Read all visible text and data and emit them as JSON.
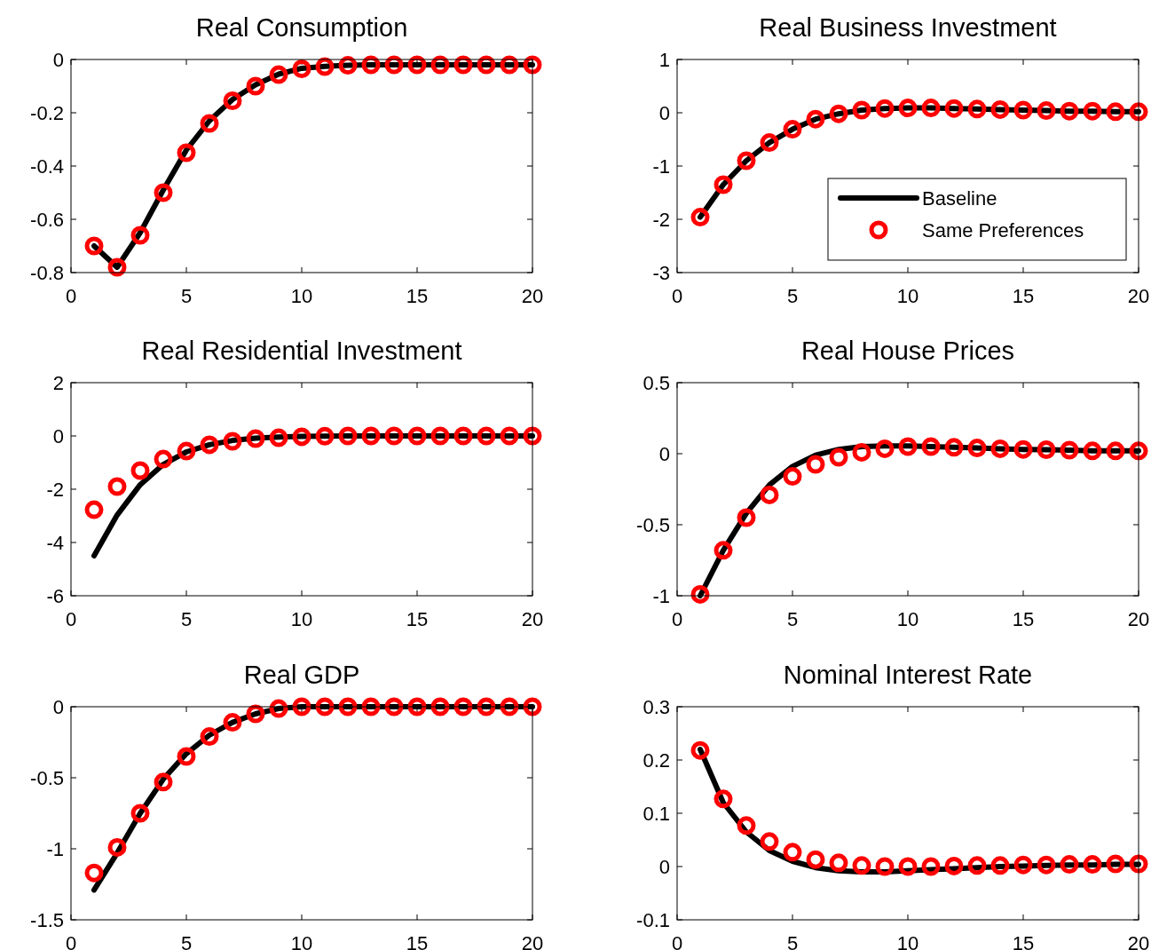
{
  "chart_data": [
    {
      "type": "line",
      "title": "Real Consumption",
      "x": [
        1,
        2,
        3,
        4,
        5,
        6,
        7,
        8,
        9,
        10,
        11,
        12,
        13,
        14,
        15,
        16,
        17,
        18,
        19,
        20
      ],
      "xlim": [
        0,
        20
      ],
      "xticks": [
        0,
        5,
        10,
        15,
        20
      ],
      "ylim": [
        -0.8,
        0
      ],
      "yticks": [
        -0.8,
        -0.6,
        -0.4,
        -0.2,
        0
      ],
      "legend": false,
      "series": [
        {
          "type": "line",
          "color": "#000000",
          "marker": "none",
          "line_style": "solid",
          "values": [
            -0.7,
            -0.78,
            -0.65,
            -0.49,
            -0.34,
            -0.23,
            -0.15,
            -0.095,
            -0.055,
            -0.033,
            -0.026,
            -0.022,
            -0.02,
            -0.02,
            -0.02,
            -0.02,
            -0.02,
            -0.02,
            -0.02,
            -0.02
          ]
        },
        {
          "type": "scatter",
          "color": "#ff0000",
          "marker": "circle",
          "values": [
            -0.7,
            -0.78,
            -0.66,
            -0.5,
            -0.35,
            -0.24,
            -0.155,
            -0.1,
            -0.057,
            -0.035,
            -0.027,
            -0.022,
            -0.02,
            -0.02,
            -0.02,
            -0.02,
            -0.02,
            -0.02,
            -0.02,
            -0.02
          ]
        }
      ]
    },
    {
      "type": "line",
      "title": "Real Business Investment",
      "x": [
        1,
        2,
        3,
        4,
        5,
        6,
        7,
        8,
        9,
        10,
        11,
        12,
        13,
        14,
        15,
        16,
        17,
        18,
        19,
        20
      ],
      "xlim": [
        0,
        20
      ],
      "xticks": [
        0,
        5,
        10,
        15,
        20
      ],
      "ylim": [
        -3,
        1
      ],
      "yticks": [
        -3,
        -2,
        -1,
        0,
        1
      ],
      "legend": "bottom right",
      "series": [
        {
          "type": "line",
          "name": "Baseline",
          "color": "#000000",
          "marker": "none",
          "line_style": "solid",
          "values": [
            -1.96,
            -1.35,
            -0.9,
            -0.56,
            -0.31,
            -0.12,
            -0.02,
            0.05,
            0.08,
            0.09,
            0.09,
            0.08,
            0.07,
            0.06,
            0.05,
            0.04,
            0.03,
            0.03,
            0.02,
            0.02
          ]
        },
        {
          "type": "scatter",
          "name": "Same Preferences",
          "color": "#ff0000",
          "marker": "circle",
          "values": [
            -1.96,
            -1.35,
            -0.9,
            -0.56,
            -0.31,
            -0.12,
            -0.02,
            0.05,
            0.08,
            0.09,
            0.09,
            0.08,
            0.07,
            0.06,
            0.05,
            0.04,
            0.03,
            0.03,
            0.02,
            0.02
          ]
        }
      ]
    },
    {
      "type": "line",
      "title": "Real Residential Investment",
      "x": [
        1,
        2,
        3,
        4,
        5,
        6,
        7,
        8,
        9,
        10,
        11,
        12,
        13,
        14,
        15,
        16,
        17,
        18,
        19,
        20
      ],
      "xlim": [
        0,
        20
      ],
      "xticks": [
        0,
        5,
        10,
        15,
        20
      ],
      "ylim": [
        -6,
        2
      ],
      "yticks": [
        -6,
        -4,
        -2,
        0,
        2
      ],
      "legend": false,
      "series": [
        {
          "type": "line",
          "color": "#000000",
          "marker": "none",
          "line_style": "solid",
          "values": [
            -4.5,
            -2.97,
            -1.83,
            -1.07,
            -0.6,
            -0.33,
            -0.17,
            -0.08,
            -0.04,
            -0.02,
            -0.01,
            0,
            0,
            0,
            0,
            0,
            0,
            0,
            0,
            0
          ]
        },
        {
          "type": "scatter",
          "color": "#ff0000",
          "marker": "circle",
          "values": [
            -2.77,
            -1.9,
            -1.3,
            -0.87,
            -0.57,
            -0.33,
            -0.2,
            -0.1,
            -0.07,
            -0.03,
            -0.01,
            0,
            0,
            0,
            0,
            0,
            0,
            0,
            0,
            0
          ]
        }
      ]
    },
    {
      "type": "line",
      "title": "Real House Prices",
      "x": [
        1,
        2,
        3,
        4,
        5,
        6,
        7,
        8,
        9,
        10,
        11,
        12,
        13,
        14,
        15,
        16,
        17,
        18,
        19,
        20
      ],
      "xlim": [
        0,
        20
      ],
      "xticks": [
        0,
        5,
        10,
        15,
        20
      ],
      "ylim": [
        -1,
        0.5
      ],
      "yticks": [
        -1,
        -0.5,
        0,
        0.5
      ],
      "legend": false,
      "series": [
        {
          "type": "line",
          "color": "#000000",
          "marker": "none",
          "line_style": "solid",
          "values": [
            -1.0,
            -0.68,
            -0.42,
            -0.22,
            -0.09,
            -0.01,
            0.03,
            0.05,
            0.055,
            0.055,
            0.05,
            0.045,
            0.04,
            0.035,
            0.03,
            0.028,
            0.025,
            0.02,
            0.02,
            0.02
          ]
        },
        {
          "type": "scatter",
          "color": "#ff0000",
          "marker": "circle",
          "values": [
            -0.99,
            -0.68,
            -0.45,
            -0.29,
            -0.16,
            -0.075,
            -0.025,
            0.01,
            0.035,
            0.05,
            0.05,
            0.045,
            0.04,
            0.035,
            0.03,
            0.028,
            0.025,
            0.02,
            0.02,
            0.02
          ]
        }
      ]
    },
    {
      "type": "line",
      "title": "Real GDP",
      "x": [
        1,
        2,
        3,
        4,
        5,
        6,
        7,
        8,
        9,
        10,
        11,
        12,
        13,
        14,
        15,
        16,
        17,
        18,
        19,
        20
      ],
      "xlim": [
        0,
        20
      ],
      "xticks": [
        0,
        5,
        10,
        15,
        20
      ],
      "ylim": [
        -1.5,
        0
      ],
      "yticks": [
        -1.5,
        -1,
        -0.5,
        0
      ],
      "legend": false,
      "series": [
        {
          "type": "line",
          "color": "#000000",
          "marker": "none",
          "line_style": "solid",
          "values": [
            -1.29,
            -1.03,
            -0.75,
            -0.51,
            -0.33,
            -0.2,
            -0.11,
            -0.05,
            -0.013,
            0,
            0,
            0,
            0,
            0,
            0,
            0,
            0,
            0,
            0,
            0
          ]
        },
        {
          "type": "scatter",
          "color": "#ff0000",
          "marker": "circle",
          "values": [
            -1.17,
            -0.99,
            -0.75,
            -0.53,
            -0.35,
            -0.21,
            -0.11,
            -0.05,
            -0.013,
            0,
            0,
            0,
            0,
            0,
            0,
            0,
            0,
            0,
            0,
            0
          ]
        }
      ]
    },
    {
      "type": "line",
      "title": "Nominal Interest Rate",
      "x": [
        1,
        2,
        3,
        4,
        5,
        6,
        7,
        8,
        9,
        10,
        11,
        12,
        13,
        14,
        15,
        16,
        17,
        18,
        19,
        20
      ],
      "xlim": [
        0,
        20
      ],
      "xticks": [
        0,
        5,
        10,
        15,
        20
      ],
      "ylim": [
        -0.1,
        0.3
      ],
      "yticks": [
        -0.1,
        0,
        0.1,
        0.2,
        0.3
      ],
      "legend": false,
      "series": [
        {
          "type": "line",
          "color": "#000000",
          "marker": "none",
          "line_style": "solid",
          "values": [
            0.22,
            0.12,
            0.065,
            0.03,
            0.01,
            -0.002,
            -0.008,
            -0.01,
            -0.01,
            -0.008,
            -0.006,
            -0.004,
            -0.002,
            0,
            0.001,
            0.002,
            0.003,
            0.003,
            0.004,
            0.004
          ]
        },
        {
          "type": "scatter",
          "color": "#ff0000",
          "marker": "circle",
          "values": [
            0.218,
            0.127,
            0.077,
            0.047,
            0.027,
            0.013,
            0.007,
            0.002,
            0,
            0,
            0,
            0.001,
            0.002,
            0.002,
            0.003,
            0.003,
            0.004,
            0.004,
            0.005,
            0.005
          ]
        }
      ]
    }
  ]
}
